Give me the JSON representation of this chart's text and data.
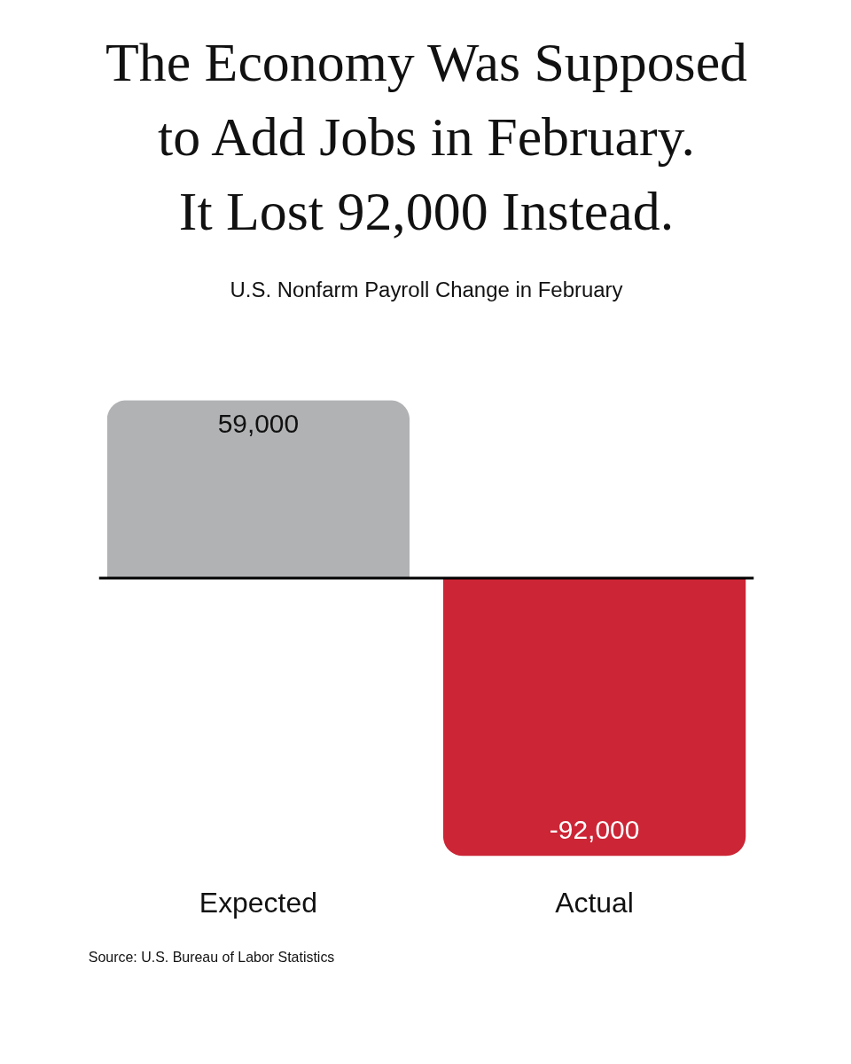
{
  "chart_data": {
    "type": "bar",
    "title": "The Economy Was Supposed to Add Jobs in February. It Lost 92,000 Instead.",
    "subtitle": "U.S. Nonfarm Payroll Change in February",
    "categories": [
      "Expected",
      "Actual"
    ],
    "values": [
      59000,
      -92000
    ],
    "colors": [
      "#b1b2b4",
      "#cc2535"
    ],
    "value_labels": [
      "59,000",
      "-92,000"
    ],
    "annotations": [
      "Source: U.S. Bureau of Labor Statistics"
    ],
    "grid": false
  }
}
